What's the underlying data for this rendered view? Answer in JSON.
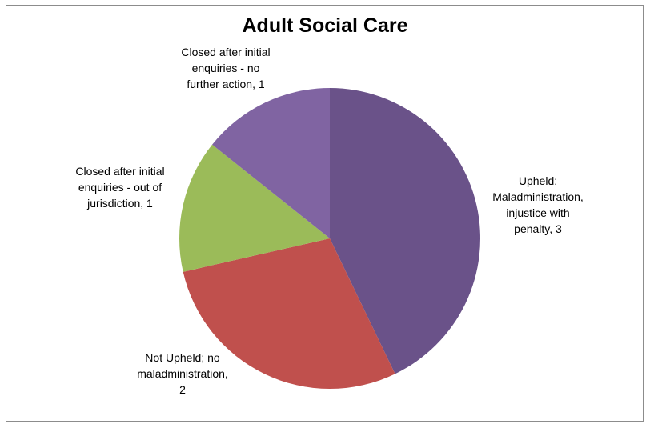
{
  "chart_data": {
    "type": "pie",
    "title": "Adult Social Care",
    "slices": [
      {
        "name": "Upheld; Maladministration, injustice with penalty",
        "value": 3,
        "color": "#6a5289",
        "label_lines": [
          "Upheld;",
          "Maladministration,",
          "injustice with",
          "penalty, 3"
        ]
      },
      {
        "name": "Not Upheld; no maladministration",
        "value": 2,
        "color": "#c0504d",
        "label_lines": [
          "Not Upheld; no",
          "maladministration,",
          "2"
        ]
      },
      {
        "name": "Closed after initial enquiries - out of jurisdiction",
        "value": 1,
        "color": "#9bbb59",
        "label_lines": [
          "Closed after initial",
          "enquiries - out of",
          "jurisdiction, 1"
        ]
      },
      {
        "name": "Closed after initial enquiries - no further action",
        "value": 1,
        "color": "#8064a2",
        "label_lines": [
          "Closed after initial",
          "enquiries - no",
          "further action, 1"
        ]
      }
    ],
    "start_angle": "12 o'clock",
    "direction": "clockwise",
    "legend": "none"
  }
}
